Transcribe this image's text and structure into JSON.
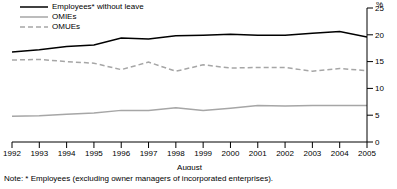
{
  "chart_data": {
    "type": "line",
    "xlabel": "August",
    "ylabel": "%",
    "annotations": [
      "Note: * Employees (excluding owner managers of incorporated enterprises)."
    ],
    "x": [
      1992,
      1993,
      1994,
      1995,
      1996,
      1997,
      1998,
      1999,
      2000,
      2001,
      2002,
      2003,
      2004,
      2005
    ],
    "xlim": [
      1992,
      2005
    ],
    "xticks": [
      1992,
      1993,
      1994,
      1995,
      1996,
      1997,
      1998,
      1999,
      2000,
      2001,
      2002,
      2003,
      2004,
      2005
    ],
    "ylim": [
      0,
      25
    ],
    "yticks": [
      0,
      5,
      10,
      15,
      20,
      25
    ],
    "grid": false,
    "legend": "top-left",
    "series": [
      {
        "name": "Employees* without leave",
        "color": "#000000",
        "line_style": "solid",
        "values": [
          16.8,
          17.2,
          17.8,
          18.1,
          19.4,
          19.2,
          19.8,
          19.9,
          20.1,
          19.9,
          19.9,
          20.3,
          20.6,
          19.6
        ]
      },
      {
        "name": "OMIEs",
        "color": "#a6a6a6",
        "line_style": "solid",
        "values": [
          4.8,
          4.9,
          5.2,
          5.4,
          5.9,
          5.9,
          6.4,
          5.9,
          6.3,
          6.8,
          6.7,
          6.8,
          6.8,
          6.8
        ]
      },
      {
        "name": "OMUEs",
        "color": "#a6a6a6",
        "line_style": "dashed",
        "values": [
          15.3,
          15.4,
          15.0,
          14.7,
          13.5,
          14.9,
          13.2,
          14.4,
          13.8,
          13.9,
          13.9,
          13.2,
          13.7,
          13.3
        ]
      }
    ]
  }
}
